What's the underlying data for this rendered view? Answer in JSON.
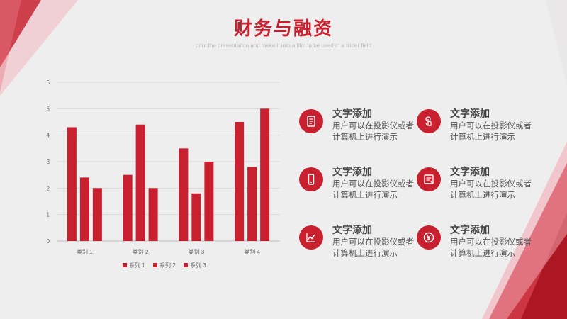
{
  "page": {
    "title": "财务与融资",
    "subtitle": "print the presentation and make it into a film to be used in a wider field"
  },
  "chart_data": {
    "type": "bar",
    "categories": [
      "类别 1",
      "类别 2",
      "类别 3",
      "类别 4"
    ],
    "series": [
      {
        "name": "系列 1",
        "values": [
          4.3,
          2.5,
          3.5,
          4.5
        ],
        "color": "#c8202f"
      },
      {
        "name": "系列 2",
        "values": [
          2.4,
          4.4,
          1.8,
          2.8
        ],
        "color": "#c8202f"
      },
      {
        "name": "系列 3",
        "values": [
          2.0,
          2.0,
          3.0,
          5.0
        ],
        "color": "#c8202f"
      }
    ],
    "ylim": [
      0,
      6
    ],
    "yticks": [
      0,
      1,
      2,
      3,
      4,
      5,
      6
    ],
    "grid": true,
    "legend": "bottom"
  },
  "features": [
    {
      "title": "文字添加",
      "desc": "用户可以在投影仪或者计算机上进行演示",
      "icon": "document-icon"
    },
    {
      "title": "文字添加",
      "desc": "用户可以在投影仪或者计算机上进行演示",
      "icon": "touch-icon"
    },
    {
      "title": "文字添加",
      "desc": "用户可以在投影仪或者计算机上进行演示",
      "icon": "mobile-icon"
    },
    {
      "title": "文字添加",
      "desc": "用户可以在投影仪或者计算机上进行演示",
      "icon": "report-icon"
    },
    {
      "title": "文字添加",
      "desc": "用户可以在投影仪或者计算机上进行演示",
      "icon": "line-chart-icon"
    },
    {
      "title": "文字添加",
      "desc": "用户可以在投影仪或者计算机上进行演示",
      "icon": "yen-coin-icon"
    }
  ],
  "colors": {
    "accent": "#c8202f",
    "background": "#efeeee"
  }
}
